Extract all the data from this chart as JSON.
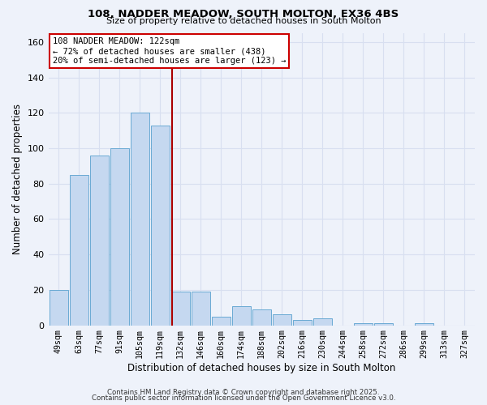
{
  "title": "108, NADDER MEADOW, SOUTH MOLTON, EX36 4BS",
  "subtitle": "Size of property relative to detached houses in South Molton",
  "xlabel": "Distribution of detached houses by size in South Molton",
  "ylabel": "Number of detached properties",
  "bar_labels": [
    "49sqm",
    "63sqm",
    "77sqm",
    "91sqm",
    "105sqm",
    "119sqm",
    "132sqm",
    "146sqm",
    "160sqm",
    "174sqm",
    "188sqm",
    "202sqm",
    "216sqm",
    "230sqm",
    "244sqm",
    "258sqm",
    "272sqm",
    "286sqm",
    "299sqm",
    "313sqm",
    "327sqm"
  ],
  "bar_values": [
    20,
    85,
    96,
    100,
    120,
    113,
    19,
    19,
    5,
    11,
    9,
    6,
    3,
    4,
    0,
    1,
    1,
    0,
    1,
    0,
    0
  ],
  "bar_color": "#c5d8f0",
  "bar_edge_color": "#6aaad4",
  "vline_x": 5.58,
  "vline_color": "#aa0000",
  "annotation_title": "108 NADDER MEADOW: 122sqm",
  "annotation_line1": "← 72% of detached houses are smaller (438)",
  "annotation_line2": "20% of semi-detached houses are larger (123) →",
  "annotation_box_color": "#ffffff",
  "annotation_box_edge": "#cc0000",
  "background_color": "#eef2fa",
  "grid_color": "#d8dff0",
  "footer1": "Contains HM Land Registry data © Crown copyright and database right 2025.",
  "footer2": "Contains public sector information licensed under the Open Government Licence v3.0.",
  "ylim": [
    0,
    165
  ],
  "yticks": [
    0,
    20,
    40,
    60,
    80,
    100,
    120,
    140,
    160
  ],
  "figsize": [
    6.0,
    5.0
  ],
  "dpi": 100
}
